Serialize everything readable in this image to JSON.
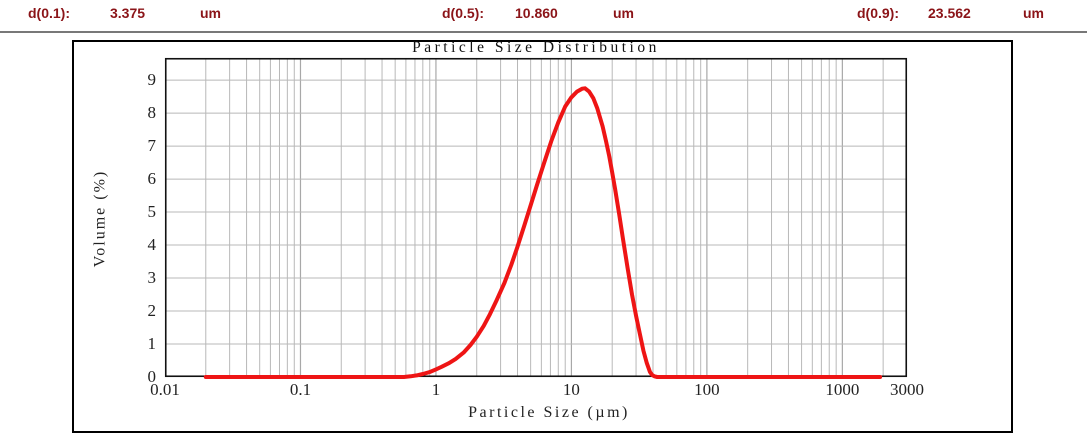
{
  "header": {
    "items": [
      {
        "label": "d(0.1):",
        "value": "3.375",
        "unit": "um"
      },
      {
        "label": "d(0.5):",
        "value": "10.860",
        "unit": "um"
      },
      {
        "label": "d(0.9):",
        "value": "23.562",
        "unit": "um"
      }
    ],
    "text_color": "#8b1418"
  },
  "chart_data": {
    "type": "line",
    "title": "Particle Size Distribution",
    "xlabel": "Particle Size (µm)",
    "ylabel": "Volume (%)",
    "x_scale": "log",
    "xlim": [
      0.01,
      3000
    ],
    "ylim": [
      0,
      9.67
    ],
    "x_major_ticks": [
      0.01,
      0.1,
      1,
      10,
      100,
      1000,
      3000
    ],
    "x_tick_labels": [
      "0.01",
      "0.1",
      "1",
      "10",
      "100",
      "1000",
      "3000"
    ],
    "x_minor_ticks": [
      0.02,
      0.03,
      0.04,
      0.05,
      0.06,
      0.07,
      0.08,
      0.09,
      0.2,
      0.3,
      0.4,
      0.5,
      0.6,
      0.7,
      0.8,
      0.9,
      2,
      3,
      4,
      5,
      6,
      7,
      8,
      9,
      20,
      30,
      40,
      50,
      60,
      70,
      80,
      90,
      200,
      300,
      400,
      500,
      600,
      700,
      800,
      900,
      2000
    ],
    "x_major_gridlines": [
      0.1,
      1,
      10,
      100,
      1000
    ],
    "y_ticks": [
      0,
      1,
      2,
      3,
      4,
      5,
      6,
      7,
      8,
      9
    ],
    "grid": true,
    "line_color": "#ee1515",
    "grid_color": "#b8b8b8",
    "border_color": "#111111",
    "series": [
      {
        "name": "Volume (%)",
        "points": [
          [
            0.02,
            0
          ],
          [
            0.05,
            0
          ],
          [
            0.1,
            0
          ],
          [
            0.2,
            0
          ],
          [
            0.3,
            0
          ],
          [
            0.4,
            0
          ],
          [
            0.5,
            0
          ],
          [
            0.58,
            0
          ],
          [
            0.65,
            0.02
          ],
          [
            0.72,
            0.05
          ],
          [
            0.8,
            0.09
          ],
          [
            0.9,
            0.15
          ],
          [
            1.0,
            0.23
          ],
          [
            1.1,
            0.31
          ],
          [
            1.25,
            0.42
          ],
          [
            1.4,
            0.55
          ],
          [
            1.6,
            0.74
          ],
          [
            1.8,
            0.97
          ],
          [
            2.0,
            1.22
          ],
          [
            2.25,
            1.55
          ],
          [
            2.5,
            1.9
          ],
          [
            2.8,
            2.32
          ],
          [
            3.2,
            2.85
          ],
          [
            3.6,
            3.4
          ],
          [
            4.0,
            3.95
          ],
          [
            4.5,
            4.6
          ],
          [
            5.0,
            5.2
          ],
          [
            5.6,
            5.85
          ],
          [
            6.3,
            6.5
          ],
          [
            7.1,
            7.15
          ],
          [
            8.0,
            7.72
          ],
          [
            9.0,
            8.2
          ],
          [
            10.0,
            8.48
          ],
          [
            11.0,
            8.65
          ],
          [
            12.0,
            8.74
          ],
          [
            12.6,
            8.75
          ],
          [
            13.5,
            8.65
          ],
          [
            14.5,
            8.45
          ],
          [
            15.5,
            8.15
          ],
          [
            17.0,
            7.6
          ],
          [
            18.0,
            7.15
          ],
          [
            19.0,
            6.7
          ],
          [
            20.0,
            6.2
          ],
          [
            21.0,
            5.7
          ],
          [
            22.5,
            4.95
          ],
          [
            24.0,
            4.2
          ],
          [
            26.0,
            3.3
          ],
          [
            28.0,
            2.5
          ],
          [
            30.0,
            1.85
          ],
          [
            32.0,
            1.3
          ],
          [
            34.0,
            0.8
          ],
          [
            36.0,
            0.42
          ],
          [
            38.0,
            0.15
          ],
          [
            39.5,
            0.06
          ],
          [
            41.0,
            0.02
          ],
          [
            43.0,
            0
          ],
          [
            60,
            0
          ],
          [
            100,
            0
          ],
          [
            200,
            0
          ],
          [
            500,
            0
          ],
          [
            1000,
            0
          ],
          [
            1500,
            0
          ],
          [
            1900,
            0
          ]
        ]
      }
    ]
  }
}
